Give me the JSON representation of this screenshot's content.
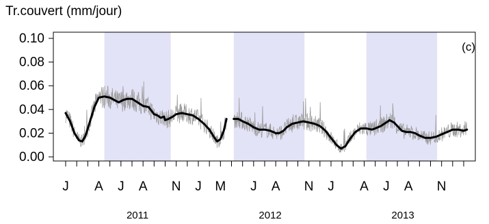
{
  "chart_data": {
    "type": "line",
    "ylabel": "Tr.couvert (mm/jour)",
    "panel_label": "(c)",
    "ylim": [
      0,
      0.1
    ],
    "yticks": [
      "0.00",
      "0.02",
      "0.04",
      "0.06",
      "0.08",
      "0.10"
    ],
    "xlim": [
      0,
      36
    ],
    "month_ticks": [
      0,
      1,
      2,
      3,
      4,
      5,
      6,
      7,
      8,
      9,
      10,
      11,
      12,
      13,
      14,
      15,
      16,
      17,
      18,
      19,
      20,
      21,
      22,
      23,
      24,
      25,
      26,
      27,
      28,
      29,
      30,
      31,
      32,
      33,
      34,
      35,
      36
    ],
    "month_labels": [
      {
        "x": 0,
        "label": "J"
      },
      {
        "x": 3,
        "label": "A"
      },
      {
        "x": 5,
        "label": "J"
      },
      {
        "x": 7,
        "label": "A"
      },
      {
        "x": 10,
        "label": "N"
      },
      {
        "x": 12,
        "label": "J"
      },
      {
        "x": 14,
        "label": "M"
      },
      {
        "x": 17,
        "label": "J"
      },
      {
        "x": 19,
        "label": "A"
      },
      {
        "x": 22,
        "label": "N"
      },
      {
        "x": 24,
        "label": "J"
      },
      {
        "x": 27,
        "label": "A"
      },
      {
        "x": 29,
        "label": "J"
      },
      {
        "x": 31,
        "label": "A"
      },
      {
        "x": 34,
        "label": "N"
      }
    ],
    "year_labels": [
      {
        "x": 6.5,
        "label": "2011"
      },
      {
        "x": 18.5,
        "label": "2012"
      },
      {
        "x": 30.5,
        "label": "2013"
      }
    ],
    "shaded_periods": [
      [
        3.5,
        9.5
      ],
      [
        15.2,
        21.6
      ],
      [
        27.2,
        33.6
      ]
    ],
    "gaps": [
      [
        14.6,
        15.2
      ]
    ],
    "colors": {
      "shade": "#e3e3f7",
      "smooth": "#000000",
      "raw": "#9a9a9a"
    },
    "series": [
      {
        "style": "smooth",
        "segments": [
          [
            [
              0.0,
              0.037
            ],
            [
              0.4,
              0.03
            ],
            [
              0.8,
              0.02
            ],
            [
              1.2,
              0.014
            ],
            [
              1.5,
              0.013
            ],
            [
              1.8,
              0.018
            ],
            [
              2.2,
              0.03
            ],
            [
              2.6,
              0.042
            ],
            [
              3.0,
              0.05
            ],
            [
              3.5,
              0.051
            ],
            [
              4.0,
              0.05
            ],
            [
              4.4,
              0.048
            ],
            [
              4.8,
              0.046
            ],
            [
              5.2,
              0.048
            ],
            [
              5.6,
              0.049
            ],
            [
              6.0,
              0.049
            ],
            [
              6.5,
              0.046
            ],
            [
              7.0,
              0.043
            ],
            [
              7.5,
              0.042
            ],
            [
              8.0,
              0.036
            ],
            [
              8.3,
              0.035
            ],
            [
              8.6,
              0.033
            ],
            [
              8.9,
              0.034
            ],
            [
              9.0,
              0.031
            ],
            [
              9.3,
              0.032
            ],
            [
              9.7,
              0.034
            ],
            [
              10.0,
              0.036
            ],
            [
              10.5,
              0.037
            ],
            [
              11.0,
              0.036
            ],
            [
              11.5,
              0.035
            ],
            [
              12.0,
              0.032
            ],
            [
              12.5,
              0.028
            ],
            [
              13.0,
              0.023
            ],
            [
              13.4,
              0.017
            ],
            [
              13.7,
              0.013
            ],
            [
              14.0,
              0.015
            ],
            [
              14.3,
              0.022
            ],
            [
              14.55,
              0.032
            ]
          ],
          [
            [
              15.2,
              0.032
            ],
            [
              15.6,
              0.032
            ],
            [
              16.0,
              0.03
            ],
            [
              16.5,
              0.028
            ],
            [
              17.0,
              0.025
            ],
            [
              17.5,
              0.023
            ],
            [
              18.0,
              0.023
            ],
            [
              18.5,
              0.022
            ],
            [
              19.0,
              0.02
            ],
            [
              19.3,
              0.02
            ],
            [
              19.7,
              0.022
            ],
            [
              20.0,
              0.025
            ],
            [
              20.5,
              0.028
            ],
            [
              21.0,
              0.029
            ],
            [
              21.5,
              0.03
            ],
            [
              22.0,
              0.029
            ],
            [
              22.5,
              0.028
            ],
            [
              23.0,
              0.026
            ],
            [
              23.5,
              0.022
            ],
            [
              24.0,
              0.016
            ],
            [
              24.5,
              0.01
            ],
            [
              24.9,
              0.007
            ],
            [
              25.3,
              0.009
            ],
            [
              25.7,
              0.015
            ],
            [
              26.2,
              0.021
            ],
            [
              26.7,
              0.024
            ],
            [
              27.2,
              0.024
            ],
            [
              27.7,
              0.023
            ],
            [
              28.0,
              0.024
            ],
            [
              28.5,
              0.026
            ],
            [
              29.0,
              0.029
            ],
            [
              29.3,
              0.031
            ],
            [
              29.7,
              0.029
            ],
            [
              30.0,
              0.026
            ],
            [
              30.4,
              0.022
            ],
            [
              30.8,
              0.021
            ],
            [
              31.2,
              0.021
            ],
            [
              31.6,
              0.02
            ],
            [
              32.0,
              0.018
            ],
            [
              32.5,
              0.016
            ],
            [
              33.0,
              0.016
            ],
            [
              33.5,
              0.017
            ],
            [
              34.0,
              0.019
            ],
            [
              34.5,
              0.021
            ],
            [
              35.0,
              0.023
            ],
            [
              35.5,
              0.023
            ],
            [
              36.0,
              0.022
            ],
            [
              36.3,
              0.023
            ]
          ]
        ]
      }
    ]
  }
}
